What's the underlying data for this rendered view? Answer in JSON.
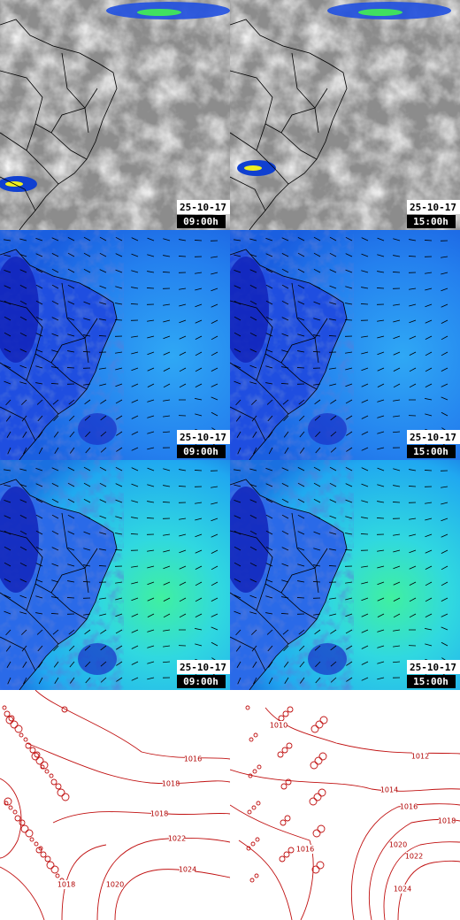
{
  "panels": [
    {
      "date": "25-10-17",
      "time": "09:00h"
    },
    {
      "date": "25-10-17",
      "time": "15:00h"
    },
    {
      "date": "25-10-17",
      "time": "09:00h"
    },
    {
      "date": "25-10-17",
      "time": "15:00h"
    },
    {
      "date": "25-10-17",
      "time": "09:00h"
    },
    {
      "date": "25-10-17",
      "time": "15:00h"
    }
  ],
  "isobars": [
    {
      "labels": [
        "1016",
        "1018",
        "1018",
        "1022",
        "1024",
        "1020",
        "1018"
      ]
    },
    {
      "labels": [
        "1010",
        "1012",
        "1014",
        "1016",
        "1018",
        "1020",
        "1022",
        "1024",
        "1016"
      ]
    }
  ]
}
